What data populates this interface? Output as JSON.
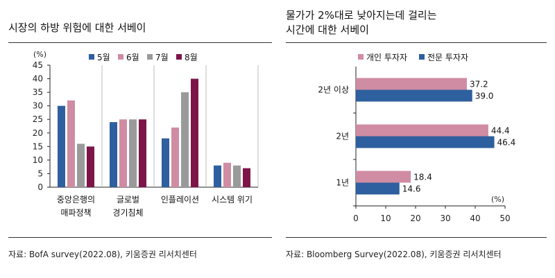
{
  "left": {
    "title": "시장의 하방 위험에 대한 서베이",
    "source": "자료: BofA survey(2022.08), 키움증권 리서치센터",
    "chart_data": {
      "type": "bar",
      "unit": "(%)",
      "categories": [
        [
          "중앙은행의",
          "매파정책"
        ],
        [
          "글로벌",
          "경기침체"
        ],
        [
          "인플레이션"
        ],
        [
          "시스템 위기"
        ]
      ],
      "series": [
        {
          "name": "5월",
          "color": "#2e5f9e",
          "values": [
            30,
            24,
            18,
            8
          ]
        },
        {
          "name": "6월",
          "color": "#d08ca3",
          "values": [
            32,
            25,
            22,
            9
          ]
        },
        {
          "name": "7월",
          "color": "#9a9a9a",
          "values": [
            16,
            25,
            35,
            8
          ]
        },
        {
          "name": "8월",
          "color": "#7d1548",
          "values": [
            15,
            25,
            40,
            7
          ]
        }
      ],
      "ylim": [
        0,
        45
      ],
      "yticks": [
        0,
        5,
        10,
        15,
        20,
        25,
        30,
        35,
        40,
        45
      ],
      "legend": "top",
      "grid": false
    }
  },
  "right": {
    "title_lines": [
      "물가가 2%대로 낮아지는데 걸리는",
      "시간에 대한 서베이"
    ],
    "source": "자료: Bloomberg Survey(2022.08), 키움증권 리서치센터",
    "chart_data": {
      "type": "bar",
      "orientation": "horizontal",
      "unit": "(%)",
      "categories": [
        "2년 이상",
        "2년",
        "1년"
      ],
      "series": [
        {
          "name": "개인 투자자",
          "color": "#d08ca3",
          "values": [
            37.2,
            44.4,
            18.4
          ],
          "labels": [
            "37.2",
            "44.4",
            "18.4"
          ]
        },
        {
          "name": "전문 투자자",
          "color": "#2e5f9e",
          "values": [
            39.0,
            46.4,
            14.6
          ],
          "labels": [
            "39.0",
            "46.4",
            "14.6"
          ]
        }
      ],
      "xlim": [
        0,
        50
      ],
      "xticks": [
        0,
        10,
        20,
        30,
        40,
        50
      ],
      "legend": "top-left",
      "grid": false
    }
  }
}
